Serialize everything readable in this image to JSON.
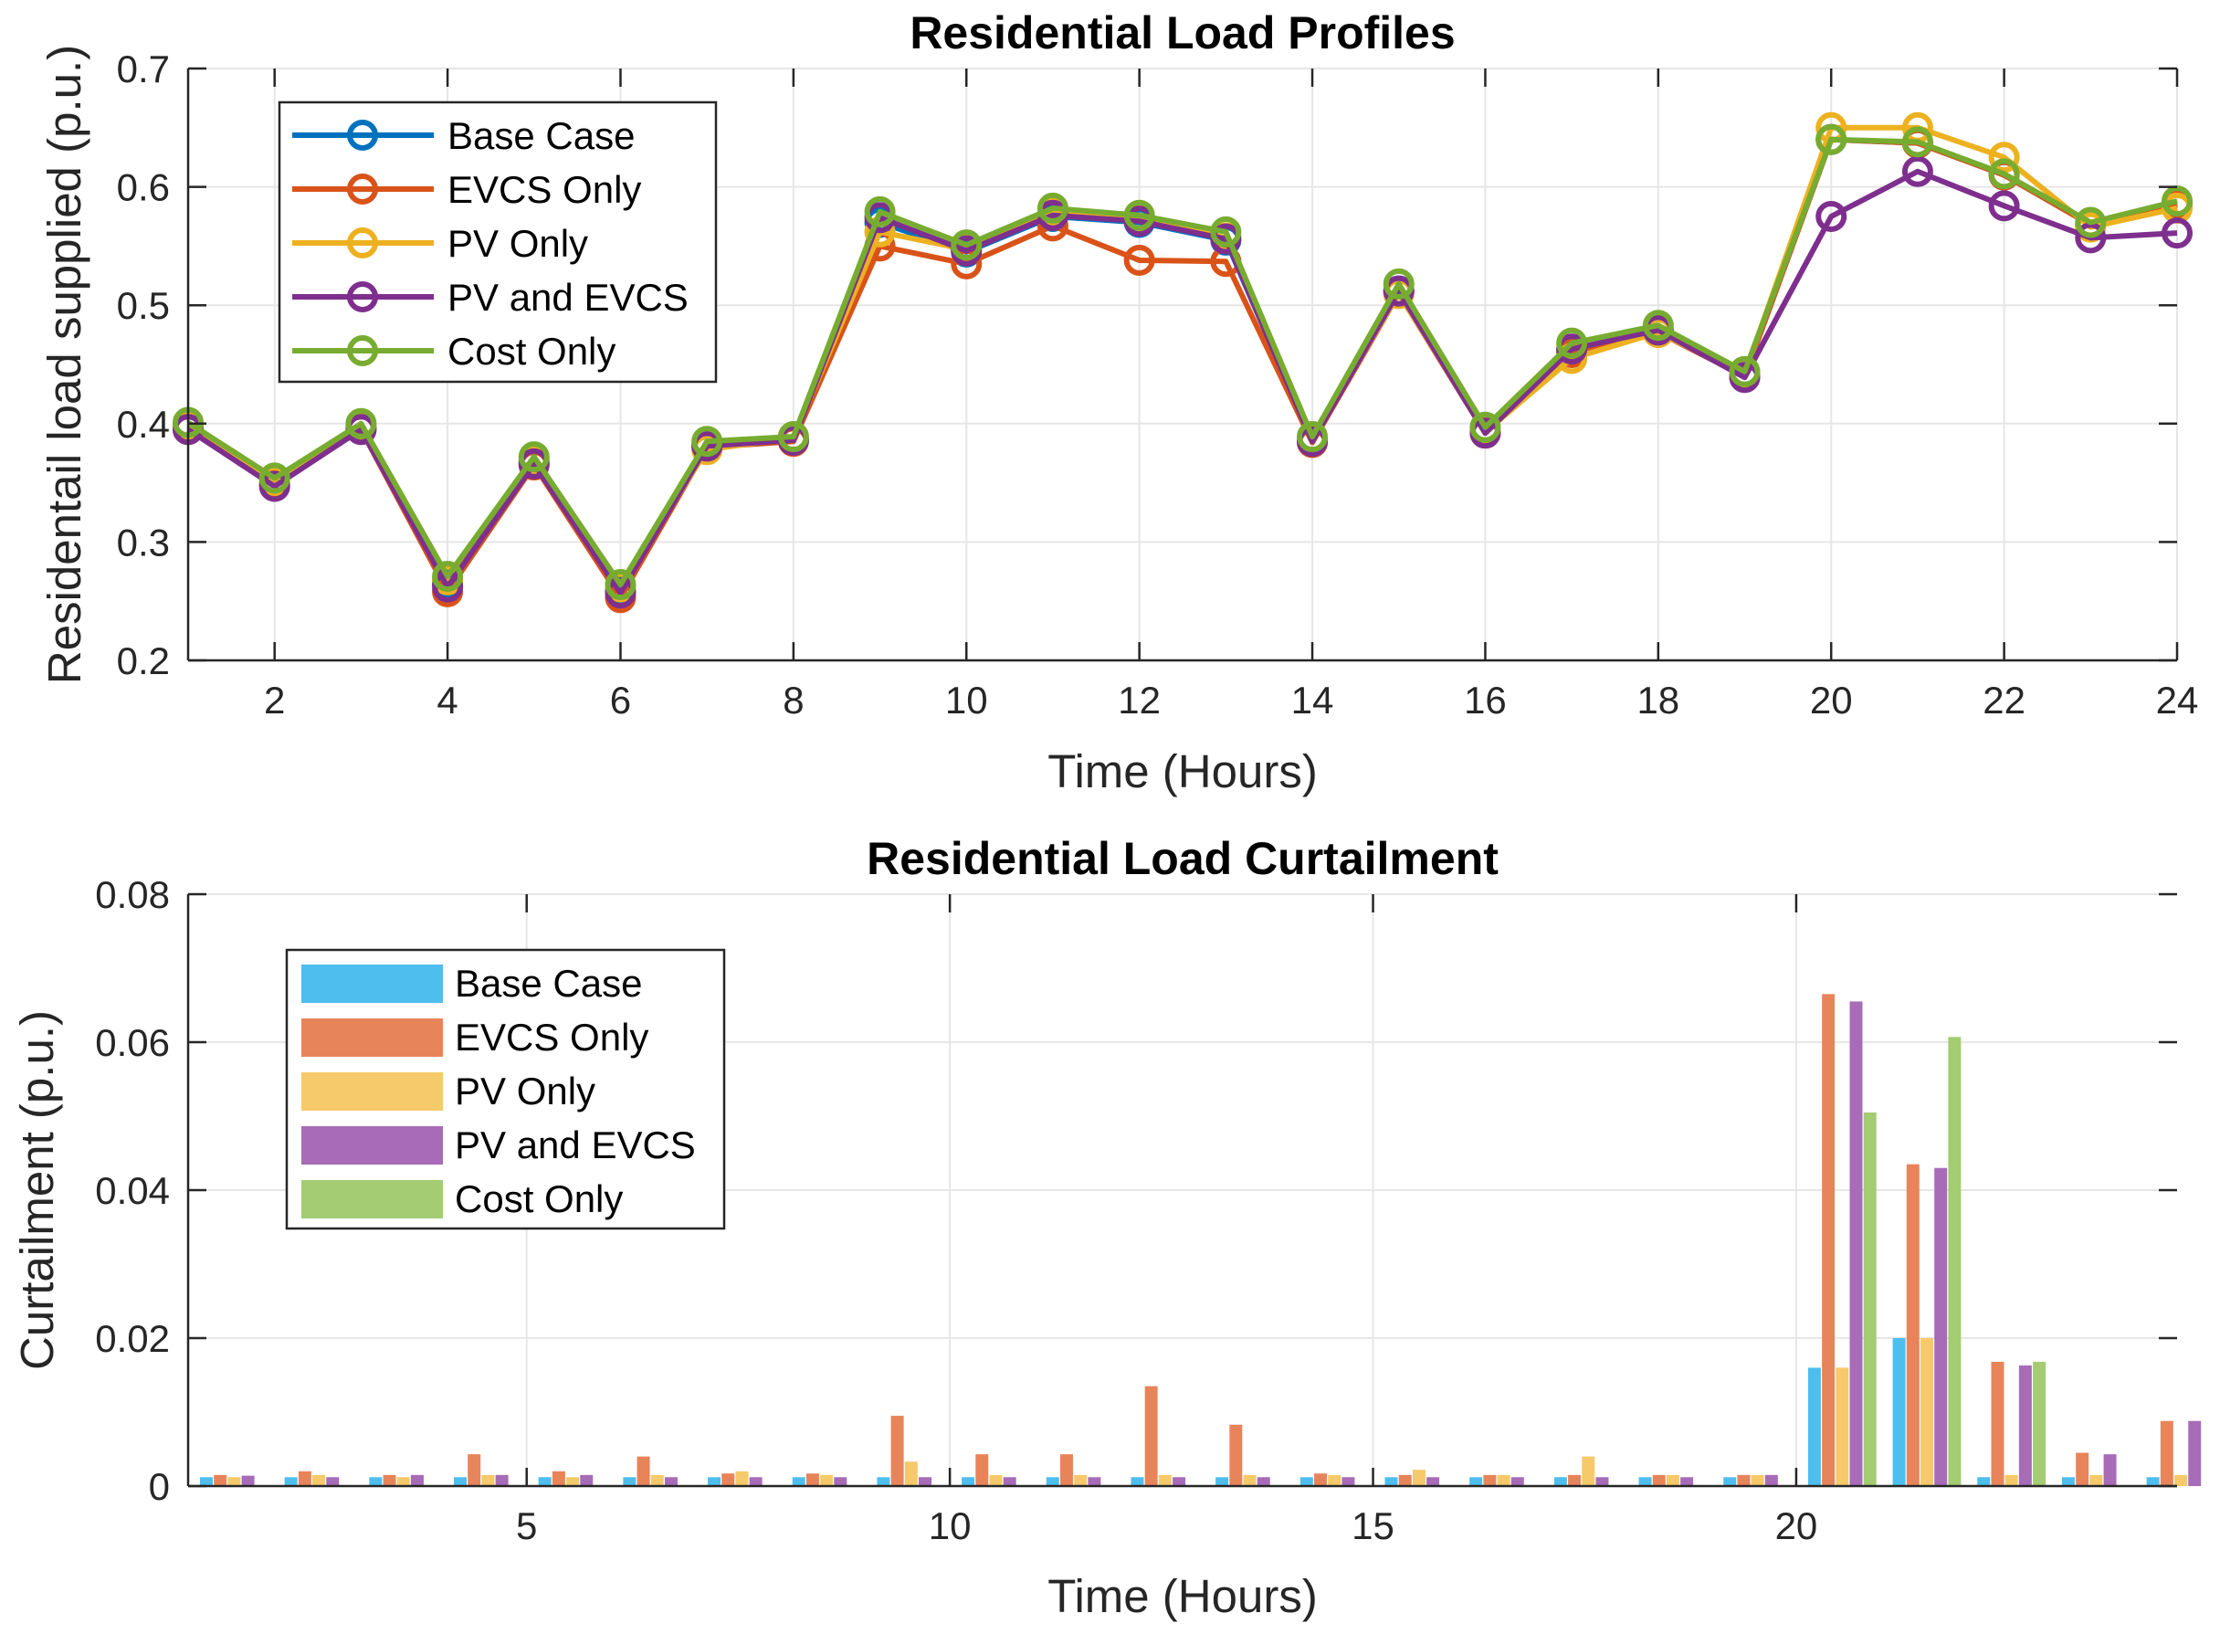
{
  "chart_data": [
    {
      "type": "line",
      "title": "Residential Load Profiles",
      "xlabel": "Time (Hours)",
      "ylabel": "Residentail load supplied (p.u.)",
      "xlim": [
        1,
        24
      ],
      "ylim": [
        0.2,
        0.7
      ],
      "xticks": [
        2,
        4,
        6,
        8,
        10,
        12,
        14,
        16,
        18,
        20,
        22,
        24
      ],
      "yticks": [
        0.2,
        0.3,
        0.4,
        0.5,
        0.6,
        0.7
      ],
      "ytick_labels": [
        "0.2",
        "0.3",
        "0.4",
        "0.5",
        "0.6",
        "0.7"
      ],
      "grid": true,
      "legend_location": "top-left",
      "x": [
        1,
        2,
        3,
        4,
        5,
        6,
        7,
        8,
        9,
        10,
        11,
        12,
        13,
        14,
        15,
        16,
        17,
        18,
        19,
        20,
        21,
        22,
        23,
        24
      ],
      "series": [
        {
          "name": "Base Case",
          "color": "#0072bd",
          "values": [
            0.398,
            0.35,
            0.397,
            0.265,
            0.368,
            0.258,
            0.382,
            0.386,
            0.57,
            0.545,
            0.575,
            0.57,
            0.555,
            0.386,
            0.512,
            0.393,
            0.462,
            0.478,
            0.44,
            0.64,
            0.637,
            0.61,
            0.568,
            0.585
          ]
        },
        {
          "name": "EVCS Only",
          "color": "#d95319",
          "values": [
            0.395,
            0.348,
            0.395,
            0.258,
            0.365,
            0.253,
            0.38,
            0.385,
            0.55,
            0.535,
            0.567,
            0.538,
            0.537,
            0.384,
            0.51,
            0.392,
            0.46,
            0.477,
            0.44,
            0.64,
            0.637,
            0.61,
            0.568,
            0.585
          ]
        },
        {
          "name": "PV Only",
          "color": "#edb120",
          "values": [
            0.398,
            0.352,
            0.398,
            0.268,
            0.37,
            0.262,
            0.378,
            0.388,
            0.562,
            0.547,
            0.578,
            0.572,
            0.557,
            0.387,
            0.51,
            0.393,
            0.455,
            0.477,
            0.442,
            0.65,
            0.65,
            0.625,
            0.566,
            0.582
          ]
        },
        {
          "name": "PV and EVCS",
          "color": "#7e2f8e",
          "values": [
            0.395,
            0.347,
            0.395,
            0.262,
            0.366,
            0.257,
            0.381,
            0.386,
            0.574,
            0.546,
            0.576,
            0.571,
            0.556,
            0.385,
            0.512,
            0.392,
            0.463,
            0.479,
            0.439,
            0.575,
            0.613,
            0.584,
            0.557,
            0.561
          ]
        },
        {
          "name": "Cost Only",
          "color": "#77ac30",
          "values": [
            0.401,
            0.354,
            0.4,
            0.271,
            0.372,
            0.264,
            0.385,
            0.389,
            0.579,
            0.551,
            0.582,
            0.576,
            0.562,
            0.389,
            0.518,
            0.397,
            0.468,
            0.483,
            0.444,
            0.64,
            0.638,
            0.611,
            0.57,
            0.588
          ]
        }
      ]
    },
    {
      "type": "bar",
      "title": "Residential Load Curtailment",
      "xlabel": "Time (Hours)",
      "ylabel": "Curtailment (p.u.)",
      "xlim": [
        1,
        24.5
      ],
      "ylim": [
        0,
        0.08
      ],
      "xticks": [
        5,
        10,
        15,
        20
      ],
      "yticks": [
        0,
        0.02,
        0.04,
        0.06,
        0.08
      ],
      "ytick_labels": [
        "0",
        "0.02",
        "0.04",
        "0.06",
        "0.08"
      ],
      "grid": true,
      "legend_location": "top-left",
      "categories": [
        1,
        2,
        3,
        4,
        5,
        6,
        7,
        8,
        9,
        10,
        11,
        12,
        13,
        14,
        15,
        16,
        17,
        18,
        19,
        20,
        21,
        22,
        23,
        24
      ],
      "series": [
        {
          "name": "Base Case",
          "color": "#4dbeee",
          "values": [
            0.0012,
            0.0012,
            0.0012,
            0.0012,
            0.0012,
            0.0012,
            0.0012,
            0.0012,
            0.0012,
            0.0012,
            0.0012,
            0.0012,
            0.0012,
            0.0012,
            0.0012,
            0.0012,
            0.0012,
            0.0012,
            0.0012,
            0.016,
            0.02,
            0.0012,
            0.0012,
            0.0012
          ]
        },
        {
          "name": "EVCS Only",
          "color": "#e8845a",
          "values": [
            0.0015,
            0.002,
            0.0015,
            0.0043,
            0.002,
            0.004,
            0.0017,
            0.0017,
            0.0095,
            0.0043,
            0.0043,
            0.0135,
            0.0083,
            0.0017,
            0.0015,
            0.0015,
            0.0015,
            0.0015,
            0.0015,
            0.0665,
            0.0435,
            0.0168,
            0.0045,
            0.0088
          ]
        },
        {
          "name": "PV Only",
          "color": "#f6c96a",
          "values": [
            0.0012,
            0.0015,
            0.0012,
            0.0015,
            0.0012,
            0.0015,
            0.002,
            0.0015,
            0.0033,
            0.0015,
            0.0015,
            0.0015,
            0.0015,
            0.0015,
            0.0022,
            0.0015,
            0.004,
            0.0015,
            0.0015,
            0.016,
            0.02,
            0.0015,
            0.0015,
            0.0015
          ]
        },
        {
          "name": "PV and EVCS",
          "color": "#a76bb8",
          "values": [
            0.0014,
            0.0012,
            0.0015,
            0.0015,
            0.0015,
            0.0012,
            0.0012,
            0.0012,
            0.0012,
            0.0012,
            0.0012,
            0.0012,
            0.0012,
            0.0012,
            0.0012,
            0.0012,
            0.0012,
            0.0012,
            0.0015,
            0.0655,
            0.043,
            0.0163,
            0.0043,
            0.0088
          ]
        },
        {
          "name": "Cost Only",
          "color": "#a3cc73",
          "values": [
            0,
            0,
            0,
            0,
            0,
            0,
            0,
            0,
            0,
            0,
            0,
            0,
            0,
            0,
            0,
            0,
            0,
            0,
            0,
            0.0505,
            0.0607,
            0.0168,
            0,
            0
          ]
        }
      ]
    }
  ]
}
